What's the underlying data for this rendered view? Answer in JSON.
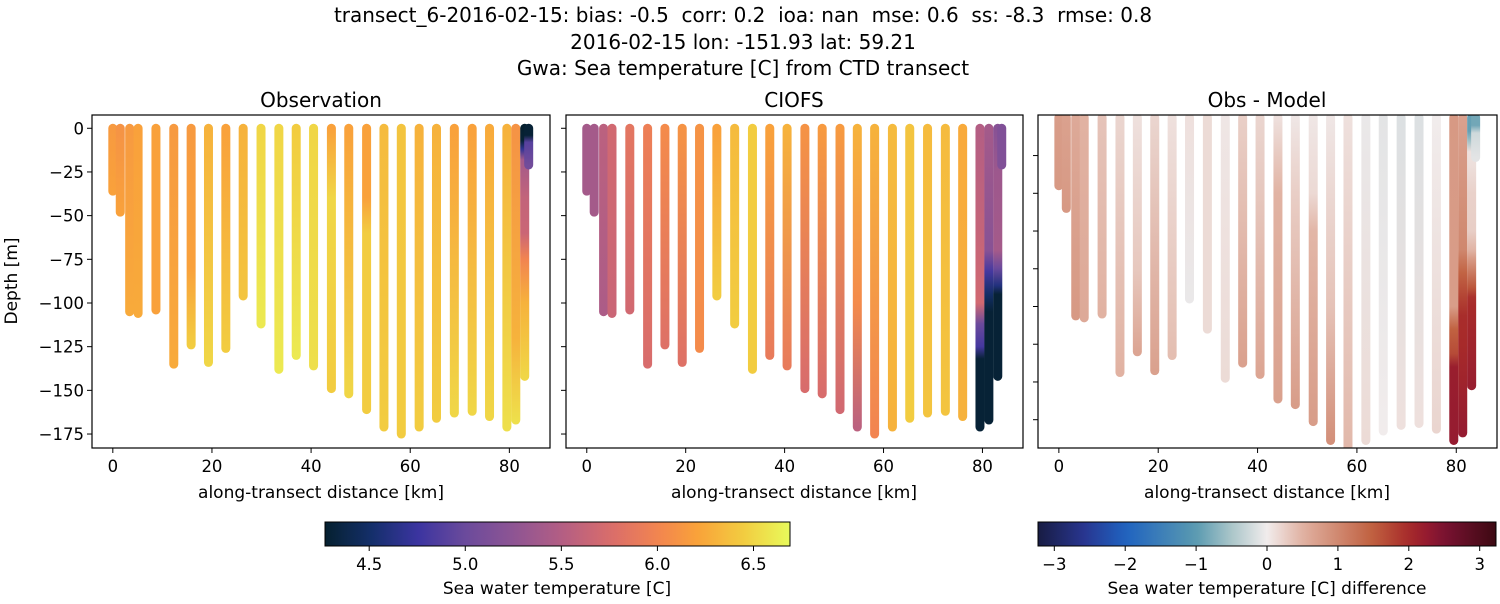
{
  "title": {
    "line1": "transect_6-2016-02-15: bias: -0.5  corr: 0.2  ioa: nan  mse: 0.6  ss: -8.3  rmse: 0.8",
    "line2": "2016-02-15 lon: -151.93 lat: 59.21",
    "line3": "Gwa: Sea temperature [C] from CTD transect"
  },
  "chart_data": {
    "type": "scatter",
    "panels": [
      {
        "title": "Observation",
        "field": "obs",
        "xlabel": "along-transect distance [km]",
        "ylabel": "Depth [m]",
        "xlim": [
          -4.2,
          88.2
        ],
        "ylim": [
          -183,
          7.6
        ],
        "xticks": [
          0,
          20,
          40,
          60,
          80
        ],
        "yticks": [
          0,
          -25,
          -50,
          -75,
          -100,
          -125,
          -150,
          -175
        ],
        "ytick_labels": [
          "0",
          "−25",
          "−50",
          "−75",
          "−100",
          "−125",
          "−150",
          "−175"
        ],
        "colormap": "thermal"
      },
      {
        "title": "CIOFS",
        "field": "model",
        "xlabel": "along-transect distance [km]",
        "ylabel": "",
        "xlim": [
          -4.2,
          88.2
        ],
        "ylim": [
          -183,
          7.6
        ],
        "xticks": [
          0,
          20,
          40,
          60,
          80
        ],
        "yticks": [
          0,
          -25,
          -50,
          -75,
          -100,
          -125,
          -150,
          -175
        ],
        "ytick_labels": [],
        "colormap": "thermal"
      },
      {
        "title": "Obs - Model",
        "field": "diff",
        "xlabel": "along-transect distance [km]",
        "ylabel": "",
        "xlim": [
          -4.2,
          88.2
        ],
        "ylim": [
          -175,
          1.5
        ],
        "xticks": [
          0,
          20,
          40,
          60,
          80
        ],
        "yticks": [
          -20,
          -40,
          -60,
          -80,
          -100,
          -120,
          -140,
          -160
        ],
        "ytick_labels": [],
        "colormap": "balance"
      }
    ],
    "casts": [
      {
        "x": 0,
        "bottom": -36,
        "obs": [
          [
            0,
            6.15
          ],
          [
            -36,
            6.2
          ]
        ],
        "model": [
          [
            0,
            5.4
          ],
          [
            -36,
            5.4
          ]
        ]
      },
      {
        "x": 1.5,
        "bottom": -48,
        "obs": [
          [
            0,
            6.1
          ],
          [
            -48,
            6.2
          ]
        ],
        "model": [
          [
            0,
            5.4
          ],
          [
            -48,
            5.4
          ]
        ]
      },
      {
        "x": 3.4,
        "bottom": -105,
        "obs": [
          [
            0,
            6.15
          ],
          [
            -105,
            6.25
          ]
        ],
        "model": [
          [
            0,
            5.55
          ],
          [
            -105,
            5.45
          ]
        ]
      },
      {
        "x": 5.1,
        "bottom": -106,
        "obs": [
          [
            0,
            6.2
          ],
          [
            -106,
            6.25
          ]
        ],
        "model": [
          [
            0,
            5.7
          ],
          [
            -106,
            5.65
          ]
        ]
      },
      {
        "x": 8.7,
        "bottom": -104,
        "obs": [
          [
            0,
            6.2
          ],
          [
            -104,
            6.2
          ]
        ],
        "model": [
          [
            0,
            5.85
          ],
          [
            -104,
            5.7
          ]
        ]
      },
      {
        "x": 12.3,
        "bottom": -135,
        "obs": [
          [
            0,
            6.15
          ],
          [
            -135,
            6.25
          ]
        ],
        "model": [
          [
            0,
            5.95
          ],
          [
            -135,
            5.75
          ]
        ]
      },
      {
        "x": 15.8,
        "bottom": -124,
        "obs": [
          [
            0,
            6.15
          ],
          [
            -80,
            6.2
          ],
          [
            -124,
            6.45
          ]
        ],
        "model": [
          [
            0,
            6.05
          ],
          [
            -124,
            5.8
          ]
        ]
      },
      {
        "x": 19.3,
        "bottom": -134,
        "obs": [
          [
            0,
            6.3
          ],
          [
            -134,
            6.5
          ]
        ],
        "model": [
          [
            0,
            6.1
          ],
          [
            -134,
            5.8
          ]
        ]
      },
      {
        "x": 22.8,
        "bottom": -126,
        "obs": [
          [
            0,
            6.2
          ],
          [
            -126,
            6.45
          ]
        ],
        "model": [
          [
            0,
            6.1
          ],
          [
            -126,
            6.05
          ]
        ]
      },
      {
        "x": 26.3,
        "bottom": -96,
        "obs": [
          [
            0,
            6.3
          ],
          [
            -96,
            6.4
          ]
        ],
        "model": [
          [
            0,
            6.2
          ],
          [
            -96,
            6.45
          ]
        ]
      },
      {
        "x": 29.9,
        "bottom": -112,
        "obs": [
          [
            0,
            6.5
          ],
          [
            -112,
            6.6
          ]
        ],
        "model": [
          [
            0,
            6.35
          ],
          [
            -112,
            6.45
          ]
        ]
      },
      {
        "x": 33.5,
        "bottom": -138,
        "obs": [
          [
            0,
            6.5
          ],
          [
            -138,
            6.6
          ]
        ],
        "model": [
          [
            0,
            6.45
          ],
          [
            -138,
            6.45
          ]
        ]
      },
      {
        "x": 37,
        "bottom": -130,
        "obs": [
          [
            0,
            6.45
          ],
          [
            -130,
            6.6
          ]
        ],
        "model": [
          [
            0,
            6.2
          ],
          [
            -130,
            5.9
          ]
        ]
      },
      {
        "x": 40.5,
        "bottom": -136,
        "obs": [
          [
            0,
            6.5
          ],
          [
            -136,
            6.55
          ]
        ],
        "model": [
          [
            0,
            6.3
          ],
          [
            -136,
            5.9
          ]
        ]
      },
      {
        "x": 44.1,
        "bottom": -149,
        "obs": [
          [
            0,
            6.2
          ],
          [
            -40,
            6.5
          ],
          [
            -149,
            6.45
          ]
        ],
        "model": [
          [
            0,
            6.1
          ],
          [
            -149,
            5.75
          ]
        ]
      },
      {
        "x": 47.6,
        "bottom": -152,
        "obs": [
          [
            0,
            6.2
          ],
          [
            -40,
            6.3
          ],
          [
            -152,
            6.5
          ]
        ],
        "model": [
          [
            0,
            6.15
          ],
          [
            -152,
            5.75
          ]
        ]
      },
      {
        "x": 51.2,
        "bottom": -161,
        "obs": [
          [
            0,
            6.2
          ],
          [
            -40,
            6.2
          ],
          [
            -60,
            6.45
          ],
          [
            -161,
            6.45
          ]
        ],
        "model": [
          [
            0,
            6.15
          ],
          [
            -161,
            5.7
          ]
        ]
      },
      {
        "x": 54.7,
        "bottom": -171,
        "obs": [
          [
            0,
            6.35
          ],
          [
            -171,
            6.45
          ]
        ],
        "model": [
          [
            0,
            6.3
          ],
          [
            -100,
            6.05
          ],
          [
            -171,
            5.55
          ]
        ]
      },
      {
        "x": 58.2,
        "bottom": -175,
        "obs": [
          [
            0,
            6.4
          ],
          [
            -175,
            6.45
          ]
        ],
        "model": [
          [
            0,
            6.3
          ],
          [
            -175,
            6.0
          ]
        ]
      },
      {
        "x": 61.8,
        "bottom": -171,
        "obs": [
          [
            0,
            6.3
          ],
          [
            -171,
            6.45
          ]
        ],
        "model": [
          [
            0,
            6.35
          ],
          [
            -171,
            6.3
          ]
        ]
      },
      {
        "x": 65.3,
        "bottom": -166,
        "obs": [
          [
            0,
            6.3
          ],
          [
            -166,
            6.45
          ]
        ],
        "model": [
          [
            0,
            6.4
          ],
          [
            -166,
            6.45
          ]
        ]
      },
      {
        "x": 68.9,
        "bottom": -163,
        "obs": [
          [
            0,
            6.2
          ],
          [
            -163,
            6.5
          ]
        ],
        "model": [
          [
            0,
            6.35
          ],
          [
            -163,
            6.4
          ]
        ]
      },
      {
        "x": 72.5,
        "bottom": -162,
        "obs": [
          [
            0,
            6.2
          ],
          [
            -162,
            6.5
          ]
        ],
        "model": [
          [
            0,
            6.35
          ],
          [
            -162,
            6.4
          ]
        ]
      },
      {
        "x": 76,
        "bottom": -165,
        "obs": [
          [
            0,
            6.25
          ],
          [
            -165,
            6.5
          ]
        ],
        "model": [
          [
            0,
            6.25
          ],
          [
            -165,
            6.3
          ]
        ]
      },
      {
        "x": 79.5,
        "bottom": -171,
        "obs": [
          [
            0,
            6.3
          ],
          [
            -171,
            6.55
          ]
        ],
        "model": [
          [
            0,
            5.5
          ],
          [
            -100,
            5.7
          ],
          [
            -112,
            5.0
          ],
          [
            -125,
            4.8
          ],
          [
            -132,
            4.3
          ],
          [
            -171,
            4.3
          ]
        ]
      },
      {
        "x": 81.3,
        "bottom": -167,
        "obs": [
          [
            0,
            6.1
          ],
          [
            -120,
            6.3
          ],
          [
            -167,
            6.55
          ]
        ],
        "model": [
          [
            0,
            5.4
          ],
          [
            -70,
            5.2
          ],
          [
            -82,
            4.8
          ],
          [
            -95,
            4.5
          ],
          [
            -105,
            4.3
          ],
          [
            -167,
            4.3
          ]
        ]
      },
      {
        "x": 83.1,
        "bottom": -142,
        "obs": [
          [
            0,
            4.27
          ],
          [
            -7,
            4.3
          ],
          [
            -12,
            4.7
          ],
          [
            -18,
            5.4
          ],
          [
            -40,
            5.6
          ],
          [
            -60,
            5.65
          ],
          [
            -75,
            6.0
          ],
          [
            -100,
            6.3
          ],
          [
            -142,
            6.5
          ]
        ],
        "model": [
          [
            0,
            5.2
          ],
          [
            -25,
            5.35
          ],
          [
            -70,
            5.4
          ],
          [
            -80,
            5.0
          ],
          [
            -90,
            4.6
          ],
          [
            -95,
            4.3
          ],
          [
            -142,
            4.3
          ]
        ]
      },
      {
        "x": 83.9,
        "bottom": -21,
        "obs": [
          [
            0,
            4.3
          ],
          [
            -4,
            4.3
          ],
          [
            -8,
            4.9
          ],
          [
            -21,
            5.05
          ]
        ],
        "model": [
          [
            0,
            5.15
          ],
          [
            -21,
            5.15
          ]
        ]
      }
    ],
    "colorbars": [
      {
        "label": "Sea water temperature [C]",
        "range": [
          4.27,
          6.69
        ],
        "ticks": [
          4.5,
          5.0,
          5.5,
          6.0,
          6.5
        ],
        "tick_labels": [
          "4.5",
          "5.0",
          "5.5",
          "6.0",
          "6.5"
        ],
        "colormap": "thermal"
      },
      {
        "label": "Sea water temperature [C] difference",
        "range": [
          -3.23,
          3.23
        ],
        "ticks": [
          -3,
          -2,
          -1,
          0,
          1,
          2,
          3
        ],
        "tick_labels": [
          "−3",
          "−2",
          "−1",
          "0",
          "1",
          "2",
          "3"
        ],
        "colormap": "balance"
      }
    ],
    "colormaps": {
      "thermal": [
        [
          0,
          "#05202f"
        ],
        [
          0.1,
          "#142f6a"
        ],
        [
          0.2,
          "#3b34a0"
        ],
        [
          0.3,
          "#6a4a9c"
        ],
        [
          0.4,
          "#8c5494"
        ],
        [
          0.51,
          "#b45e84"
        ],
        [
          0.61,
          "#d86c6c"
        ],
        [
          0.715,
          "#f28450"
        ],
        [
          0.8,
          "#f9a23a"
        ],
        [
          0.9,
          "#f2cc40"
        ],
        [
          1,
          "#e8fa5b"
        ]
      ],
      "balance": [
        [
          0,
          "#181c43"
        ],
        [
          0.1,
          "#28358f"
        ],
        [
          0.19,
          "#1f62c0"
        ],
        [
          0.345,
          "#5a9ab0"
        ],
        [
          0.42,
          "#a8c4c8"
        ],
        [
          0.5,
          "#f1ecec"
        ],
        [
          0.58,
          "#e0b0a0"
        ],
        [
          0.655,
          "#d08870"
        ],
        [
          0.73,
          "#c0603f"
        ],
        [
          0.81,
          "#a72a2a"
        ],
        [
          0.85,
          "#941a30"
        ],
        [
          0.887,
          "#7a1232"
        ],
        [
          1,
          "#3c0912"
        ]
      ]
    }
  }
}
